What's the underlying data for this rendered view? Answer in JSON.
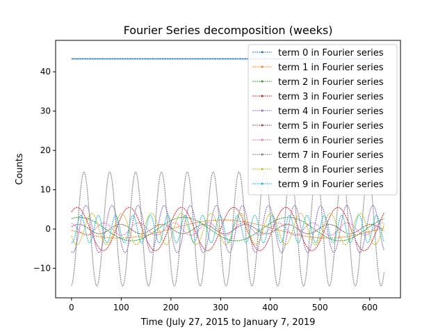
{
  "chart_data": {
    "type": "line",
    "title": "Fourier Series decomposition (weeks)",
    "xlabel": "Time (July 27, 2015 to January 7, 2019",
    "ylabel": "Counts",
    "xlim": [
      -32,
      662
    ],
    "ylim": [
      -17.5,
      48
    ],
    "x_ticks": [
      0,
      100,
      200,
      300,
      400,
      500,
      600
    ],
    "y_ticks": [
      -10,
      0,
      10,
      20,
      30,
      40
    ],
    "x_tick_labels": [
      "0",
      "100",
      "200",
      "300",
      "400",
      "500",
      "600"
    ],
    "y_tick_labels": [
      "−10",
      "0",
      "10",
      "20",
      "30",
      "40"
    ],
    "n_points": 630,
    "legend_position": "top-right",
    "series": [
      {
        "name": "term 0 in Fourier series",
        "color": "#1f77b4",
        "amplitude": 0,
        "period": 1,
        "phase": 0,
        "offset": 43.3
      },
      {
        "name": "term 1 in Fourier series",
        "color": "#ff7f0e",
        "amplitude": 2.3,
        "period": 420,
        "phase": 3.3,
        "offset": 0
      },
      {
        "name": "term 2 in Fourier series",
        "color": "#2ca02c",
        "amplitude": 3.0,
        "period": 210,
        "phase": 1.1,
        "offset": 0
      },
      {
        "name": "term 3 in Fourier series",
        "color": "#d62728",
        "amplitude": 5.5,
        "period": 105,
        "phase": 0.9,
        "offset": 0
      },
      {
        "name": "term 4 in Fourier series",
        "color": "#9467bd",
        "amplitude": 6.0,
        "period": 52.5,
        "phase": -1.9,
        "offset": 0
      },
      {
        "name": "term 5 in Fourier series",
        "color": "#8c564b",
        "amplitude": 1.2,
        "period": 84,
        "phase": 0.5,
        "offset": 0
      },
      {
        "name": "term 6 in Fourier series",
        "color": "#e377c2",
        "amplitude": 1.6,
        "period": 70,
        "phase": 2.0,
        "offset": 0
      },
      {
        "name": "term 7 in Fourier series",
        "color": "#7f7f7f",
        "amplitude": 14.5,
        "period": 52,
        "phase": -1.45,
        "offset": 0
      },
      {
        "name": "term 8 in Fourier series",
        "color": "#bcbd22",
        "amplitude": 4.0,
        "period": 60,
        "phase": -2.7,
        "offset": 0
      },
      {
        "name": "term 9 in Fourier series",
        "color": "#17becf",
        "amplitude": 3.5,
        "period": 35,
        "phase": -1.8,
        "offset": 0
      }
    ]
  }
}
